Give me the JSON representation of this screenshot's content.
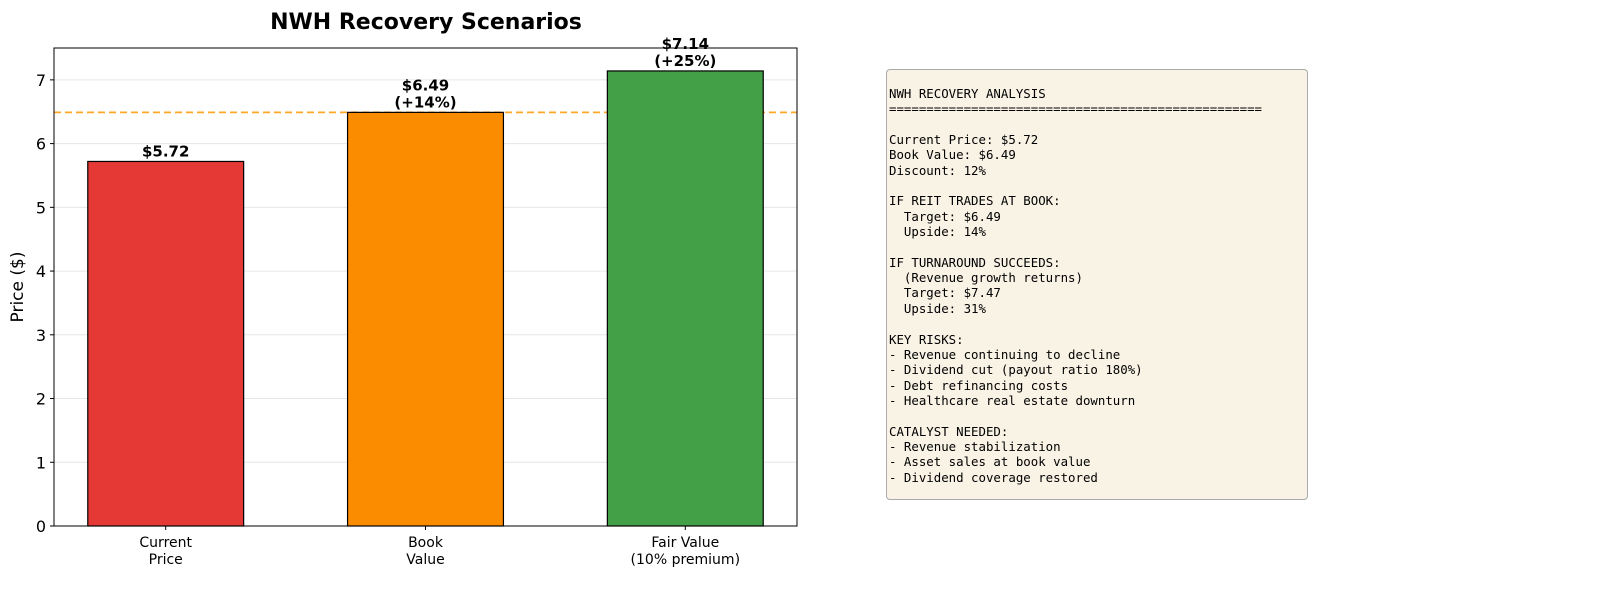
{
  "chart_data": {
    "type": "bar",
    "title": "NWH Recovery Scenarios",
    "xlabel": "",
    "ylabel": "Price ($)",
    "categories": [
      "Current\nPrice",
      "Book\nValue",
      "Fair Value\n(10% premium)"
    ],
    "values": [
      5.72,
      6.49,
      7.14
    ],
    "data_labels": [
      "$5.72",
      "$6.49\n(+14%)",
      "$7.14\n(+25%)"
    ],
    "colors": [
      "#e53935",
      "#fb8c00",
      "#43a047"
    ],
    "ylim": [
      0,
      7.5
    ],
    "yticks": [
      0,
      1,
      2,
      3,
      4,
      5,
      6,
      7
    ],
    "grid": "y",
    "reference_line": {
      "value": 6.49,
      "style": "dashed",
      "color": "#ffa726"
    }
  },
  "info_panel": {
    "text": "NWH RECOVERY ANALYSIS\n==================================================\n\nCurrent Price: $5.72\nBook Value: $6.49\nDiscount: 12%\n\nIF REIT TRADES AT BOOK:\n  Target: $6.49\n  Upside: 14%\n\nIF TURNAROUND SUCCEEDS:\n  (Revenue growth returns)\n  Target: $7.47\n  Upside: 31%\n\nKEY RISKS:\n- Revenue continuing to decline\n- Dividend cut (payout ratio 180%)\n- Debt refinancing costs\n- Healthcare real estate downturn\n\nCATALYST NEEDED:\n- Revenue stabilization\n- Asset sales at book value\n- Dividend coverage restored"
  }
}
